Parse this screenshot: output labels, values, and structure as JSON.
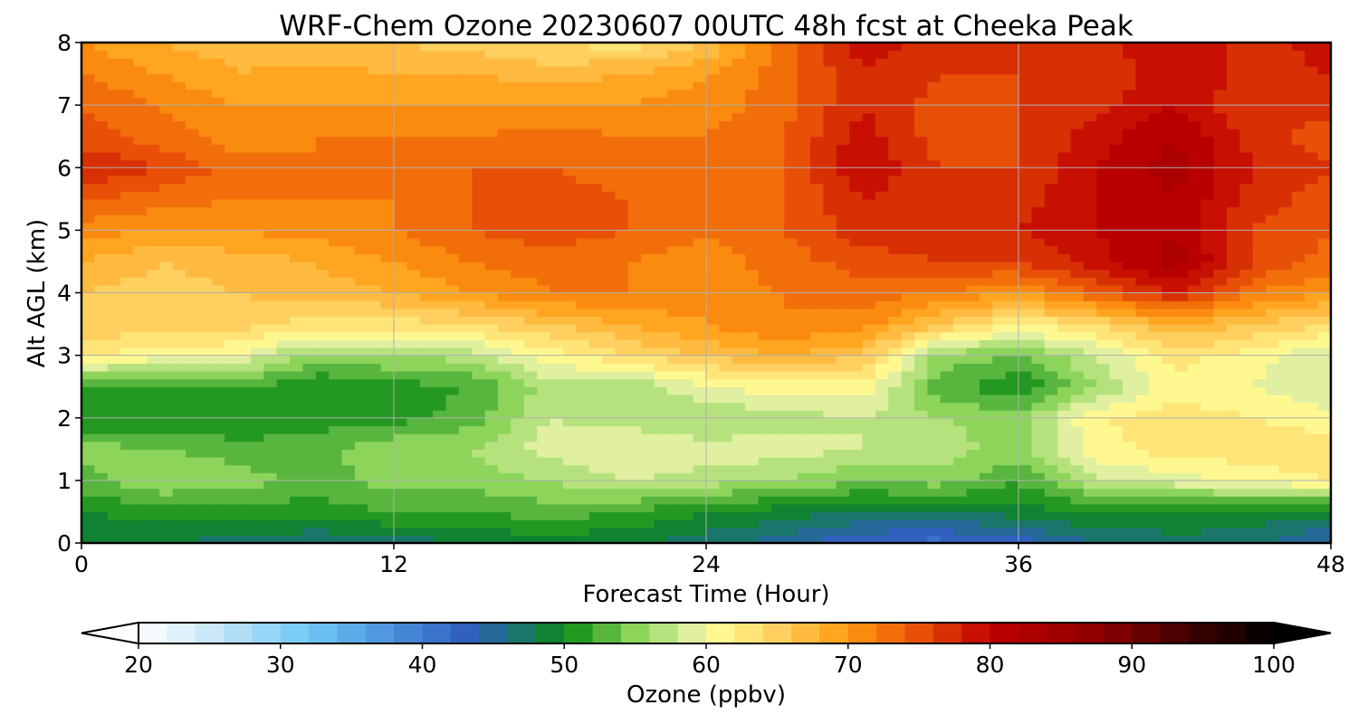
{
  "chart_data": {
    "type": "heatmap",
    "title": "WRF-Chem Ozone  20230607 00UTC 48h fcst at Cheeka Peak",
    "xlabel": "Forecast Time (Hour)",
    "ylabel": "Alt AGL (km)",
    "xlim": [
      0,
      48
    ],
    "ylim": [
      0,
      8
    ],
    "xticks": [
      "0",
      "12",
      "24",
      "36",
      "48"
    ],
    "yticks": [
      "0",
      "1",
      "2",
      "3",
      "4",
      "5",
      "6",
      "7",
      "8"
    ],
    "grid": true,
    "x": [
      0,
      3,
      6,
      9,
      12,
      15,
      18,
      21,
      24,
      27,
      30,
      33,
      36,
      39,
      42,
      45,
      48
    ],
    "y": [
      0,
      0.5,
      1,
      1.5,
      2,
      2.5,
      3,
      3.5,
      4,
      4.5,
      5,
      5.5,
      6,
      6.5,
      7,
      7.5,
      8
    ],
    "z": [
      [
        48,
        48,
        47,
        46,
        47,
        48,
        49,
        48,
        47,
        45,
        42,
        41,
        43,
        46,
        47,
        47,
        43
      ],
      [
        50,
        51,
        51,
        51,
        52,
        52,
        53,
        52,
        50,
        49,
        48,
        48,
        49,
        50,
        50,
        49,
        49
      ],
      [
        53,
        56,
        55,
        53,
        55,
        55,
        56,
        58,
        57,
        56,
        54,
        55,
        52,
        58,
        59,
        61,
        62
      ],
      [
        55,
        54,
        53,
        53,
        56,
        56,
        59,
        60,
        59,
        59,
        58,
        57,
        55,
        61,
        63,
        63,
        63
      ],
      [
        50,
        50,
        50,
        51,
        51,
        53,
        58,
        57,
        56,
        57,
        58,
        56,
        55,
        62,
        63,
        62,
        61
      ],
      [
        52,
        51,
        52,
        50,
        51,
        52,
        57,
        56,
        60,
        61,
        61,
        53,
        50,
        56,
        61,
        60,
        58
      ],
      [
        62,
        61,
        60,
        55,
        56,
        57,
        61,
        64,
        66,
        68,
        66,
        55,
        54,
        58,
        63,
        61,
        58
      ],
      [
        66,
        65,
        65,
        63,
        63,
        64,
        66,
        68,
        70,
        72,
        71,
        66,
        62,
        64,
        68,
        66,
        64
      ],
      [
        66,
        65,
        66,
        67,
        68,
        70,
        72,
        72,
        71,
        72,
        73,
        72,
        70,
        74,
        78,
        72,
        70
      ],
      [
        68,
        66,
        67,
        68,
        70,
        72,
        73,
        72,
        71,
        73,
        75,
        76,
        76,
        79,
        83,
        76,
        73
      ],
      [
        71,
        70,
        70,
        71,
        72,
        74,
        75,
        74,
        72,
        74,
        77,
        77,
        78,
        80,
        82,
        76,
        74
      ],
      [
        74,
        73,
        72,
        72,
        72,
        74,
        75,
        74,
        72,
        74,
        78,
        76,
        77,
        80,
        82,
        77,
        75
      ],
      [
        78,
        76,
        73,
        72,
        72,
        74,
        74,
        73,
        72,
        74,
        80,
        76,
        76,
        80,
        83,
        78,
        76
      ],
      [
        75,
        73,
        71,
        72,
        72,
        72,
        73,
        72,
        72,
        74,
        79,
        75,
        76,
        79,
        82,
        77,
        75
      ],
      [
        74,
        72,
        70,
        70,
        70,
        70,
        70,
        70,
        71,
        73,
        78,
        75,
        76,
        77,
        80,
        76,
        77
      ],
      [
        72,
        70,
        68,
        69,
        68,
        68,
        67,
        68,
        70,
        73,
        78,
        76,
        76,
        76,
        80,
        77,
        78
      ],
      [
        70,
        68,
        67,
        66,
        66,
        65,
        64,
        63,
        66,
        73,
        79,
        77,
        76,
        77,
        80,
        77,
        79
      ]
    ],
    "colorbar": {
      "label": "Ozone  (ppbv)",
      "range": [
        20,
        100
      ],
      "extend": "both",
      "ticks": [
        "20",
        "30",
        "40",
        "50",
        "60",
        "70",
        "80",
        "90",
        "100"
      ],
      "stops": [
        {
          "value": 20,
          "color": "#ffffff"
        },
        {
          "value": 26,
          "color": "#bfe3f7"
        },
        {
          "value": 32,
          "color": "#6ec8f4"
        },
        {
          "value": 38,
          "color": "#4a90d9"
        },
        {
          "value": 43,
          "color": "#3060c0"
        },
        {
          "value": 46,
          "color": "#1f6e86"
        },
        {
          "value": 50,
          "color": "#0a8a14"
        },
        {
          "value": 55,
          "color": "#8cd45a"
        },
        {
          "value": 59,
          "color": "#e0f0a0"
        },
        {
          "value": 61,
          "color": "#fff890"
        },
        {
          "value": 65,
          "color": "#ffd060"
        },
        {
          "value": 70,
          "color": "#ff9a10"
        },
        {
          "value": 75,
          "color": "#e85008"
        },
        {
          "value": 80,
          "color": "#c00000"
        },
        {
          "value": 88,
          "color": "#8a0000"
        },
        {
          "value": 94,
          "color": "#400000"
        },
        {
          "value": 100,
          "color": "#000000"
        }
      ]
    }
  }
}
